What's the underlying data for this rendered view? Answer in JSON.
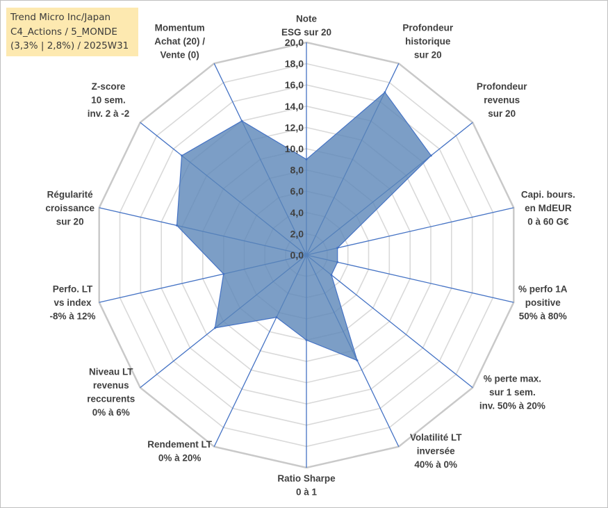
{
  "title_box": {
    "line1": "Trend Micro Inc/Japan",
    "line2": "C4_Actions / 5_MONDE",
    "line3": "(3,3% | 2,8%) / 2025W31"
  },
  "colors": {
    "fill": "#5b86b8",
    "fill_opacity": 0.8,
    "spoke": "#4472c4",
    "ring": "#d9d9d9",
    "outer_ring": "#c9c9c9",
    "title_bg": "#fde9b0"
  },
  "chart_data": {
    "type": "radar",
    "range": [
      0,
      20
    ],
    "tick_step": 2,
    "tick_labels": [
      "0,0",
      "2,0",
      "4,0",
      "6,0",
      "8,0",
      "10,0",
      "12,0",
      "14,0",
      "16,0",
      "18,0",
      "20,0"
    ],
    "axes": [
      {
        "label": [
          "Note",
          "ESG sur 20"
        ],
        "value": 9.0
      },
      {
        "label": [
          "Profondeur",
          "historique",
          "sur 20"
        ],
        "value": 17.0
      },
      {
        "label": [
          "Profondeur",
          "revenus",
          "sur 20"
        ],
        "value": 15.0
      },
      {
        "label": [
          "Capi. bours.",
          "en MdEUR",
          "0 à 60 G€"
        ],
        "value": 3.0
      },
      {
        "label": [
          "% perfo 1A",
          "positive",
          "50% à 80%"
        ],
        "value": 3.0
      },
      {
        "label": [
          "% perte max.",
          "sur 1 sem.",
          "inv. 50% à 20%"
        ],
        "value": 3.0
      },
      {
        "label": [
          "Volatilité LT",
          "inversée",
          "40% à 0%"
        ],
        "value": 11.0
      },
      {
        "label": [
          "Ratio Sharpe",
          "0 à 1"
        ],
        "value": 8.0
      },
      {
        "label": [
          "Rendement LT",
          "0% à 20%"
        ],
        "value": 6.5
      },
      {
        "label": [
          "Niveau LT",
          "revenus",
          "reccurents",
          "0% à 6%"
        ],
        "value": 11.0
      },
      {
        "label": [
          "Perfo. LT",
          "vs index",
          "-8% à 12%"
        ],
        "value": 8.0
      },
      {
        "label": [
          "Régularité",
          "croissance",
          "sur 20"
        ],
        "value": 12.5
      },
      {
        "label": [
          "Z-score",
          "10 sem.",
          "inv. 2 à -2"
        ],
        "value": 15.0
      },
      {
        "label": [
          "Momentum",
          "Achat (20) /",
          "Vente (0)"
        ],
        "value": 14.0
      }
    ]
  }
}
